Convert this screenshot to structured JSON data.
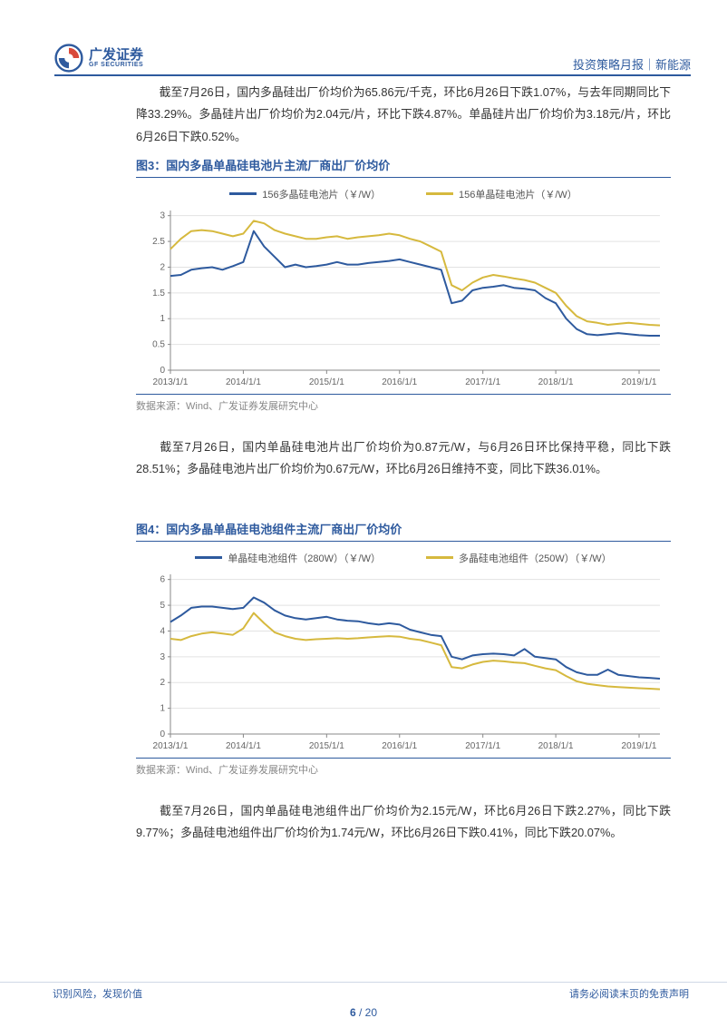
{
  "header": {
    "logo_main": "广发证券",
    "logo_sub": "GF SECURITIES",
    "right": "投资策略月报｜新能源"
  },
  "para1": "截至7月26日，国内多晶硅出厂价均价为65.86元/千克，环比6月26日下跌1.07%，与去年同期同比下降33.29%。多晶硅片出厂价均价为2.04元/片，环比下跌4.87%。单晶硅片出厂价均价为3.18元/片，环比6月26日下跌0.52%。",
  "fig3": {
    "title": "图3：国内多晶单晶硅电池片主流厂商出厂价均价",
    "type": "line",
    "legend": [
      {
        "label": "156多晶硅电池片（￥/W）",
        "color": "#2e5a9e"
      },
      {
        "label": "156单晶硅电池片（￥/W）",
        "color": "#d6b93e"
      }
    ],
    "x_labels": [
      "2013/1/1",
      "2014/1/1",
      "2015/1/1",
      "2016/1/1",
      "2017/1/1",
      "2018/1/1",
      "2019/1/1"
    ],
    "y_ticks": [
      0,
      0.5,
      1,
      1.5,
      2,
      2.5,
      3
    ],
    "ylim": [
      0,
      3.1
    ],
    "line_width": 2,
    "grid_color": "#e2e2e2",
    "bg": "#ffffff",
    "axis_color": "#888888",
    "tick_fontsize": 10,
    "series": {
      "poly": [
        1.83,
        1.85,
        1.95,
        1.98,
        2.0,
        1.95,
        2.02,
        2.1,
        2.7,
        2.4,
        2.2,
        2.0,
        2.05,
        2.0,
        2.02,
        2.05,
        2.1,
        2.05,
        2.05,
        2.08,
        2.1,
        2.12,
        2.15,
        2.1,
        2.05,
        2.0,
        1.95,
        1.3,
        1.35,
        1.55,
        1.6,
        1.62,
        1.65,
        1.6,
        1.58,
        1.55,
        1.4,
        1.3,
        1.0,
        0.8,
        0.7,
        0.68,
        0.7,
        0.72,
        0.7,
        0.68,
        0.67,
        0.67
      ],
      "mono": [
        2.35,
        2.55,
        2.7,
        2.72,
        2.7,
        2.65,
        2.6,
        2.65,
        2.9,
        2.85,
        2.72,
        2.65,
        2.6,
        2.55,
        2.55,
        2.58,
        2.6,
        2.55,
        2.58,
        2.6,
        2.62,
        2.65,
        2.62,
        2.55,
        2.5,
        2.4,
        2.3,
        1.65,
        1.55,
        1.7,
        1.8,
        1.85,
        1.82,
        1.78,
        1.75,
        1.7,
        1.6,
        1.5,
        1.25,
        1.05,
        0.95,
        0.92,
        0.88,
        0.9,
        0.92,
        0.9,
        0.88,
        0.87
      ]
    },
    "source": "数据来源：Wind、广发证券发展研究中心"
  },
  "para2": "截至7月26日，国内单晶硅电池片出厂价均价为0.87元/W，与6月26日环比保持平稳，同比下跌28.51%；多晶硅电池片出厂价均价为0.67元/W，环比6月26日维持不变，同比下跌36.01%。",
  "fig4": {
    "title": "图4：国内多晶单晶硅电池组件主流厂商出厂价均价",
    "type": "line",
    "legend": [
      {
        "label": "单晶硅电池组件（280W）（￥/W）",
        "color": "#2e5a9e"
      },
      {
        "label": "多晶硅电池组件（250W）（￥/W）",
        "color": "#d6b93e"
      }
    ],
    "x_labels": [
      "2013/1/1",
      "2014/1/1",
      "2015/1/1",
      "2016/1/1",
      "2017/1/1",
      "2018/1/1",
      "2019/1/1"
    ],
    "y_ticks": [
      0,
      1,
      2,
      3,
      4,
      5,
      6
    ],
    "ylim": [
      0,
      6.2
    ],
    "line_width": 2,
    "grid_color": "#e2e2e2",
    "bg": "#ffffff",
    "axis_color": "#888888",
    "tick_fontsize": 10,
    "series": {
      "mono": [
        4.35,
        4.6,
        4.9,
        4.95,
        4.95,
        4.9,
        4.85,
        4.9,
        5.3,
        5.1,
        4.8,
        4.6,
        4.5,
        4.45,
        4.5,
        4.55,
        4.45,
        4.4,
        4.38,
        4.3,
        4.25,
        4.3,
        4.25,
        4.05,
        3.95,
        3.85,
        3.8,
        3.0,
        2.9,
        3.05,
        3.1,
        3.12,
        3.1,
        3.05,
        3.3,
        3.0,
        2.95,
        2.9,
        2.6,
        2.4,
        2.3,
        2.3,
        2.5,
        2.3,
        2.25,
        2.2,
        2.18,
        2.15
      ],
      "poly": [
        3.7,
        3.65,
        3.8,
        3.9,
        3.95,
        3.9,
        3.85,
        4.1,
        4.7,
        4.3,
        3.95,
        3.8,
        3.7,
        3.65,
        3.68,
        3.7,
        3.72,
        3.7,
        3.72,
        3.75,
        3.78,
        3.8,
        3.78,
        3.7,
        3.65,
        3.55,
        3.45,
        2.6,
        2.55,
        2.7,
        2.8,
        2.85,
        2.82,
        2.78,
        2.75,
        2.65,
        2.55,
        2.48,
        2.25,
        2.05,
        1.95,
        1.9,
        1.85,
        1.82,
        1.8,
        1.78,
        1.76,
        1.74
      ]
    },
    "source": "数据来源：Wind、广发证券发展研究中心"
  },
  "para3": "截至7月26日，国内单晶硅电池组件出厂价均价为2.15元/W，环比6月26日下跌2.27%，同比下跌9.77%；多晶硅电池组件出厂价均价为1.74元/W，环比6月26日下跌0.41%，同比下跌20.07%。",
  "footer": {
    "left": "识别风险，发现价值",
    "right": "请务必阅读末页的免责声明",
    "page_cur": "6",
    "page_sep": " / ",
    "page_total": "20"
  }
}
